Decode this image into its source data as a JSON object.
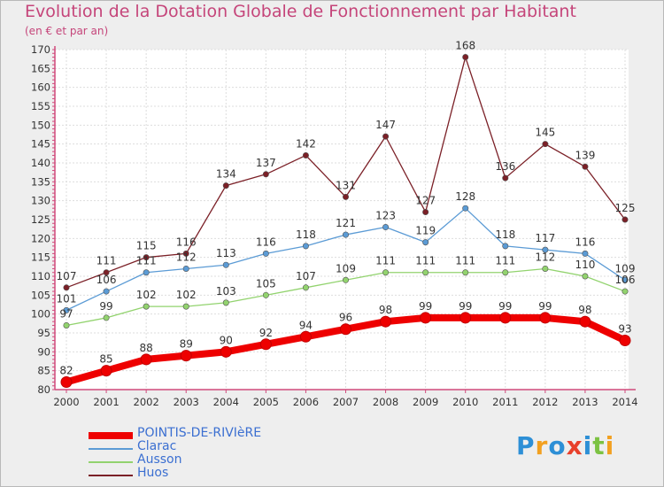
{
  "title": "Evolution de la Dotation Globale de Fonctionnement par Habitant",
  "subtitle": "(en € et par an)",
  "logo": {
    "letters": [
      "P",
      "r",
      "o",
      "x",
      "i",
      "t",
      "i"
    ],
    "colors": [
      "#2d8fd6",
      "#f2a020",
      "#2d8fd6",
      "#e8402b",
      "#2d8fd6",
      "#7cc242",
      "#f2a020"
    ]
  },
  "chart_data": {
    "type": "line",
    "title": "Evolution de la Dotation Globale de Fonctionnement par Habitant",
    "subtitle": "(en € et par an)",
    "x": [
      2000,
      2001,
      2002,
      2003,
      2004,
      2005,
      2006,
      2007,
      2008,
      2009,
      2010,
      2011,
      2012,
      2013,
      2014
    ],
    "ylim": [
      80,
      170
    ],
    "yticks": [
      80,
      85,
      90,
      95,
      100,
      105,
      110,
      115,
      120,
      125,
      130,
      135,
      140,
      145,
      150,
      155,
      160,
      165,
      170
    ],
    "grid": true,
    "legend_position": "bottom-left",
    "series": [
      {
        "name": "POINTIS-DE-RIVIèRE",
        "color": "#ee0000",
        "values": [
          82,
          85,
          88,
          89,
          90,
          92,
          94,
          96,
          98,
          99,
          99,
          99,
          99,
          98,
          93
        ]
      },
      {
        "name": "Clarac",
        "color": "#5b9bd5",
        "values": [
          101,
          106,
          111,
          112,
          113,
          116,
          118,
          121,
          123,
          119,
          128,
          118,
          117,
          116,
          109
        ]
      },
      {
        "name": "Ausson",
        "color": "#92d36e",
        "values": [
          97,
          99,
          102,
          102,
          103,
          105,
          107,
          109,
          111,
          111,
          111,
          111,
          112,
          110,
          106
        ]
      },
      {
        "name": "Huos",
        "color": "#7b2027",
        "values": [
          107,
          111,
          115,
          116,
          134,
          137,
          142,
          131,
          147,
          127,
          168,
          136,
          145,
          139,
          125
        ]
      }
    ]
  }
}
